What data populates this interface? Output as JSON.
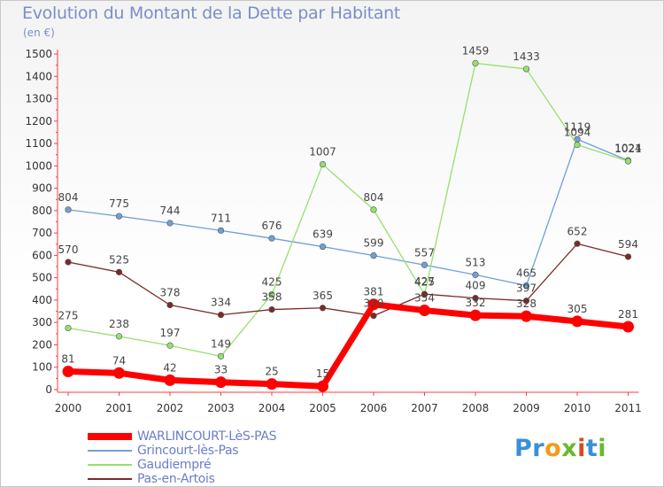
{
  "title": "Evolution du Montant de la Dette par Habitant",
  "unit": "(en €)",
  "brand": {
    "name": "Proxiti",
    "letters": [
      "P",
      "r",
      "o",
      "x",
      "i",
      "t",
      "i"
    ],
    "letter_colors": [
      "#3a8fd8",
      "#3a8fd8",
      "#f39a1a",
      "#6ab82f",
      "#d94a1f",
      "#3a8fd8",
      "#6ab82f"
    ]
  },
  "chart_data": {
    "type": "line",
    "x": [
      "2000",
      "2001",
      "2002",
      "2003",
      "2004",
      "2005",
      "2006",
      "2007",
      "2008",
      "2009",
      "2010",
      "2011"
    ],
    "ylim": [
      0,
      1500
    ],
    "yticks": [
      0,
      100,
      200,
      300,
      400,
      500,
      600,
      700,
      800,
      900,
      1000,
      1100,
      1200,
      1300,
      1400,
      1500
    ],
    "grid": false,
    "legend_position": "bottom-left",
    "series": [
      {
        "name": "WARLINCOURT-LèS-PAS",
        "color": "#ff0000",
        "values": [
          81,
          74,
          42,
          33,
          25,
          15,
          381,
          354,
          332,
          328,
          305,
          281
        ],
        "emphasis": true
      },
      {
        "name": "Grincourt-lès-Pas",
        "color": "#6fa0d8",
        "values": [
          804,
          775,
          744,
          711,
          676,
          639,
          599,
          557,
          513,
          465,
          1119,
          1024
        ],
        "emphasis": false
      },
      {
        "name": "Gaudiempré",
        "color": "#96e06e",
        "values": [
          275,
          238,
          197,
          149,
          425,
          1007,
          804,
          425,
          1459,
          1433,
          1094,
          1021
        ],
        "emphasis": false
      },
      {
        "name": "Pas-en-Artois",
        "color": "#7a2a2a",
        "values": [
          570,
          525,
          378,
          334,
          358,
          365,
          330,
          427,
          409,
          397,
          652,
          594
        ],
        "emphasis": false
      }
    ]
  }
}
